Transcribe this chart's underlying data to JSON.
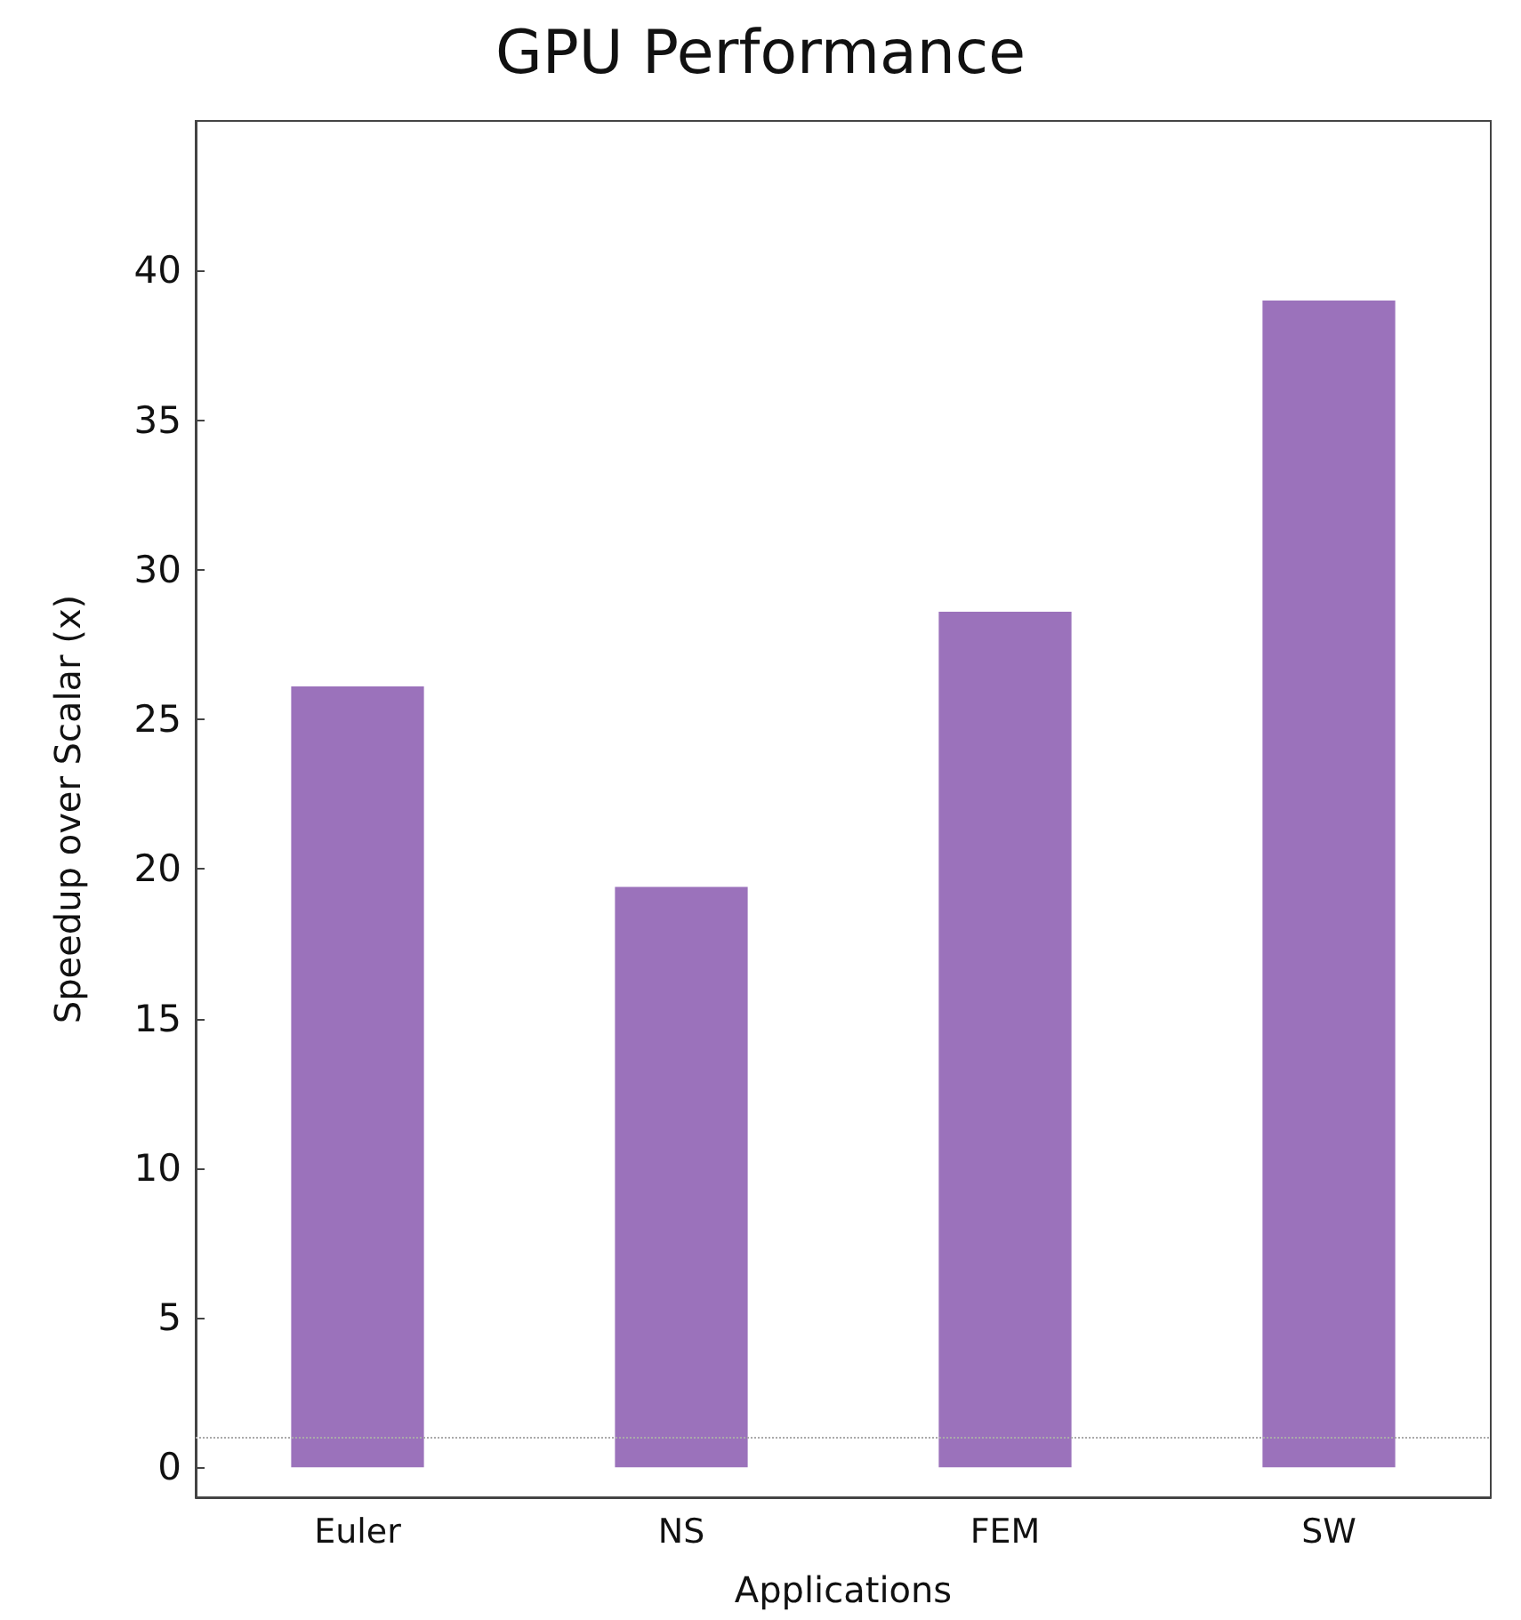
{
  "chart_data": {
    "type": "bar",
    "title": "GPU Performance",
    "xlabel": "Applications",
    "ylabel": "Speedup over Scalar (x)",
    "categories": [
      "Euler",
      "NS",
      "FEM",
      "SW"
    ],
    "series": [
      {
        "color": "#9b72bb",
        "values": [
          26.1,
          19.4,
          28.6,
          39.0
        ]
      }
    ],
    "ylim": [
      -1,
      45
    ],
    "yticks": [
      0,
      5,
      10,
      15,
      20,
      25,
      30,
      35,
      40
    ],
    "grid": false,
    "ref_lines": [
      {
        "axis": "y",
        "value": 1,
        "label": null,
        "color": "#aaaaaa",
        "line_style": "dotted"
      }
    ]
  }
}
